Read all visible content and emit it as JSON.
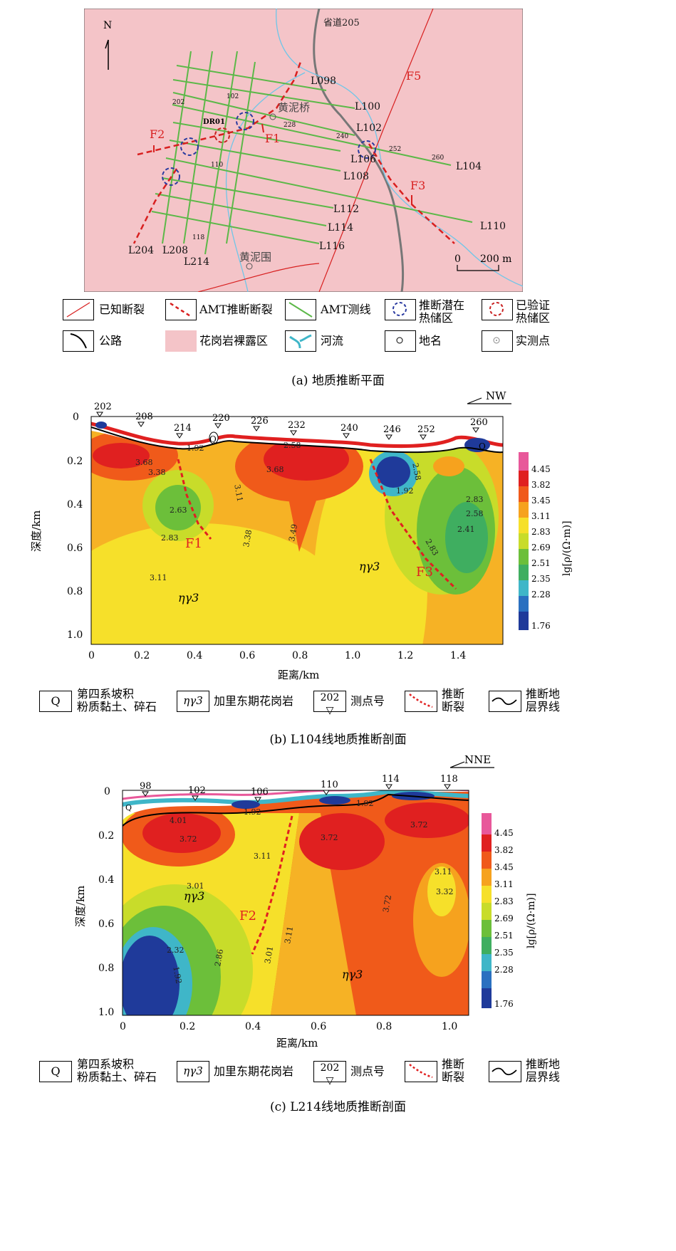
{
  "map": {
    "north": "N",
    "road": "省道205",
    "places": [
      "黄泥桥",
      "黄泥围"
    ],
    "scale": {
      "zero": "0",
      "label": "200 m"
    },
    "line_labels": [
      "L098",
      "L100",
      "L102",
      "L106",
      "L104",
      "L108",
      "L112",
      "L110",
      "L114",
      "L116",
      "L204",
      "L208",
      "L214"
    ],
    "station_labels": [
      "202",
      "102",
      "DR01",
      "228",
      "240",
      "252",
      "260",
      "110",
      "118"
    ],
    "faults": [
      "F1",
      "F2",
      "F3",
      "F5"
    ],
    "caption": "(a)  地质推断平面",
    "legend": {
      "known_fault": "已知断裂",
      "amt_fault": "AMT推断断裂",
      "amt_line": "AMT测线",
      "potential_reservoir": "推断潜在\n热储区",
      "verified_reservoir": "已验证\n热储区",
      "road": "公路",
      "granite": "花岗岩裸露区",
      "river": "河流",
      "place": "地名",
      "station": "实测点"
    }
  },
  "profile_b": {
    "direction": "NW",
    "ylabel": "深度/km",
    "xlabel": "距离/km",
    "yticks": [
      "0",
      "0.2",
      "0.4",
      "0.6",
      "0.8",
      "1.0"
    ],
    "xticks": [
      "0",
      "0.2",
      "0.4",
      "0.6",
      "0.8",
      "1.0",
      "1.2",
      "1.4"
    ],
    "stations": [
      "202",
      "208",
      "214",
      "220",
      "226",
      "232",
      "240",
      "246",
      "252",
      "260"
    ],
    "contours": [
      "3.68",
      "3.38",
      "2.63",
      "2.83",
      "3.11",
      "1.92",
      "3.11",
      "3.68",
      "3.38",
      "3.49",
      "2.58",
      "1.92",
      "2.58",
      "2.83",
      "2.58",
      "2.41",
      "2.83",
      "3.11"
    ],
    "faults": [
      "F1",
      "F3"
    ],
    "rock": "ηγ3",
    "q": "Q",
    "caption": "(b)  L104线地质推断剖面"
  },
  "profile_c": {
    "direction": "NNE",
    "ylabel": "深度/km",
    "xlabel": "距离/km",
    "yticks": [
      "0",
      "0.2",
      "0.4",
      "0.6",
      "0.8",
      "1.0"
    ],
    "xticks": [
      "0",
      "0.2",
      "0.4",
      "0.6",
      "0.8",
      "1.0"
    ],
    "stations": [
      "98",
      "102",
      "106",
      "110",
      "114",
      "118"
    ],
    "contours": [
      "4.01",
      "3.72",
      "3.11",
      "3.01",
      "1.92",
      "1.92",
      "3.72",
      "3.72",
      "3.11",
      "3.32",
      "3.72",
      "2.32",
      "1.92",
      "2.86",
      "3.01",
      "3.11"
    ],
    "faults": [
      "F2"
    ],
    "rock": "ηγ3",
    "q": "Q",
    "caption": "(c)  L214线地质推断剖面"
  },
  "colorbar": {
    "label": "lg[ρ/(Ω·m)]",
    "ticks": [
      "4.45",
      "3.82",
      "3.45",
      "3.11",
      "2.83",
      "2.69",
      "2.51",
      "2.35",
      "2.28",
      "1.76"
    ],
    "colors": [
      "#e8589a",
      "#e02020",
      "#f05a1a",
      "#f6a21e",
      "#f6e02a",
      "#c8dc2a",
      "#6cbf3a",
      "#3fae60",
      "#3fb6c8",
      "#2a70c0",
      "#1f3a9a"
    ]
  },
  "section_legend": {
    "q_symbol": "Q",
    "q_text": "第四系坡积\n粉质黏土、碎石",
    "rock_symbol": "ηγ3",
    "rock_text": "加里东期花岗岩",
    "station_symbol": "202",
    "station_text": "测点号",
    "fault_text": "推断\n断裂",
    "boundary_text": "推断地\n层界线"
  }
}
